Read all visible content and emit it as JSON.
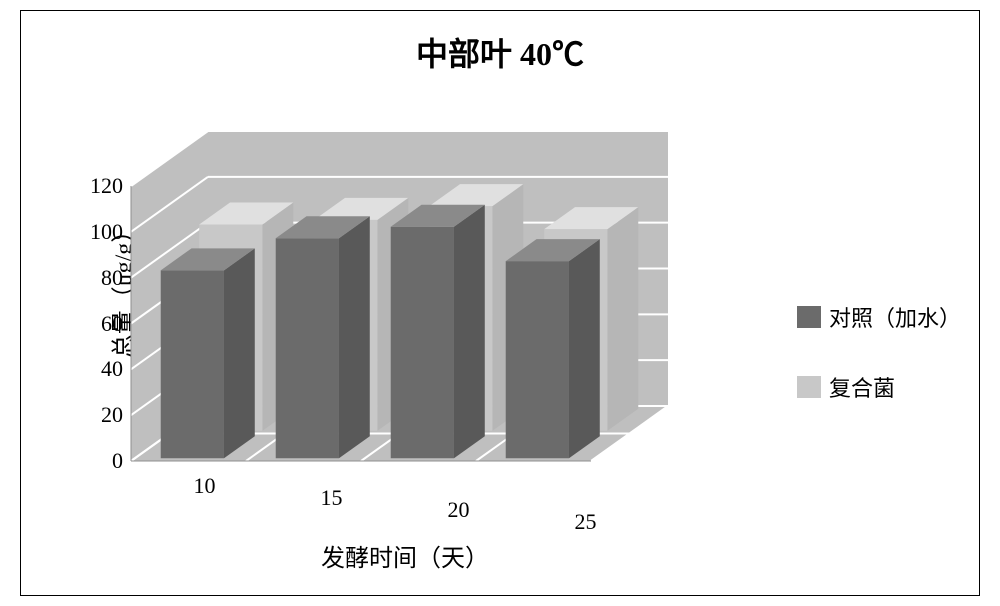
{
  "chart": {
    "type": "bar3d",
    "title": "中部叶 40℃",
    "title_fontsize": 32,
    "xlabel": "发酵时间（天）",
    "ylabel": "总量（μg/g）",
    "label_fontsize": 24,
    "categories": [
      "10",
      "15",
      "20",
      "25"
    ],
    "series": [
      {
        "name": "对照（加水）",
        "color_front": "#6b6b6b",
        "color_top": "#8a8a8a",
        "color_side": "#595959",
        "values": [
          82,
          96,
          101,
          86
        ]
      },
      {
        "name": "复合菌",
        "color_front": "#c8c8c8",
        "color_top": "#e0e0e0",
        "color_side": "#b6b6b6",
        "values": [
          90,
          92,
          98,
          88
        ]
      }
    ],
    "ylim": [
      0,
      120
    ],
    "ytick_step": 20,
    "yticks": [
      0,
      20,
      40,
      60,
      80,
      100,
      120
    ],
    "background_color": "#ffffff",
    "floor_color": "#bfbfbf",
    "back_wall_color": "#bfbfbf",
    "side_wall_color": "#bfbfbf",
    "grid_color": "#ffffff",
    "tick_fontsize": 22,
    "legend_fontsize": 22,
    "legend_position": "right",
    "bar_depth": 0.7,
    "series_gap": 0.2,
    "category_gap": 0.8,
    "floor_depth_rows": 2
  }
}
